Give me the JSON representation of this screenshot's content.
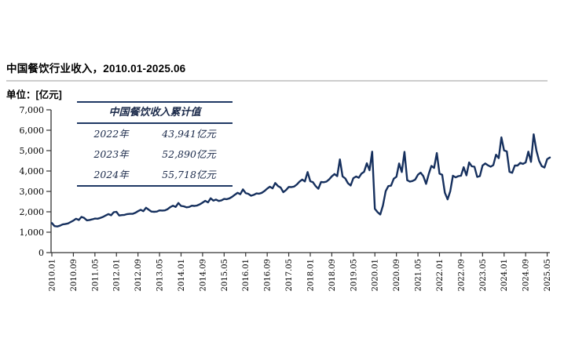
{
  "header": {
    "title": "中国餐饮行业收入，2010.01-2025.06",
    "unit_label": "单位：[亿元]"
  },
  "overlay_table": {
    "title": "中国餐饮收入累计值",
    "rows": [
      {
        "year": "2022年",
        "value": "43,941亿元"
      },
      {
        "year": "2023年",
        "value": "52,890亿元"
      },
      {
        "year": "2024年",
        "value": "55,718亿元"
      }
    ]
  },
  "colors": {
    "line_navy": "#16305e",
    "table_border_navy": "#1f3864",
    "axis_black": "#333333",
    "divider_gray": "#cdcdcd"
  },
  "chart_data": {
    "type": "line",
    "title": "中国餐饮行业收入，2010.01-2025.06",
    "ylabel": "亿元",
    "ylim": [
      0,
      7000
    ],
    "y_tick_step": 1000,
    "y_tick_labels": [
      "0",
      "1,000",
      "2,000",
      "3,000",
      "4,000",
      "5,000",
      "6,000",
      "7,000"
    ],
    "x_start": "2010.01",
    "x_end": "2025.06",
    "x_frequency": "monthly",
    "x_tick_every_months": 8,
    "x_tick_labels": [
      "2010.01",
      "2010.09",
      "2011.05",
      "2012.01",
      "2012.09",
      "2013.05",
      "2014.01",
      "2014.09",
      "2015.05",
      "2016.01",
      "2016.09",
      "2017.05",
      "2018.01",
      "2018.09",
      "2019.05",
      "2020.01",
      "2020.09",
      "2021.05",
      "2022.01",
      "2022.09",
      "2023.05",
      "2024.01",
      "2024.09",
      "2025.05"
    ],
    "grid": false,
    "legend": "none",
    "series": [
      {
        "name": "中国餐饮行业收入(月度, 亿元)",
        "values": [
          1450,
          1300,
          1280,
          1320,
          1380,
          1400,
          1430,
          1500,
          1570,
          1660,
          1600,
          1750,
          1700,
          1580,
          1600,
          1630,
          1670,
          1660,
          1700,
          1750,
          1820,
          1890,
          1830,
          1980,
          2000,
          1820,
          1840,
          1850,
          1890,
          1900,
          1900,
          1950,
          2030,
          2100,
          2030,
          2200,
          2100,
          2010,
          2000,
          2010,
          2070,
          2060,
          2070,
          2130,
          2230,
          2300,
          2240,
          2430,
          2290,
          2270,
          2220,
          2240,
          2300,
          2290,
          2310,
          2370,
          2450,
          2540,
          2460,
          2660,
          2550,
          2600,
          2530,
          2560,
          2630,
          2620,
          2660,
          2740,
          2840,
          2930,
          2860,
          3100,
          2920,
          2880,
          2790,
          2830,
          2900,
          2890,
          2930,
          3020,
          3140,
          3230,
          3150,
          3410,
          3260,
          3190,
          2960,
          3070,
          3220,
          3210,
          3240,
          3340,
          3480,
          3580,
          3490,
          3950,
          3500,
          3450,
          3260,
          3130,
          3460,
          3450,
          3480,
          3590,
          3740,
          3850,
          3750,
          4570,
          3740,
          3640,
          3400,
          3290,
          3650,
          3730,
          3670,
          3870,
          3960,
          4380,
          4040,
          4950,
          2150,
          1980,
          1870,
          2310,
          3010,
          3260,
          3280,
          3620,
          3720,
          4370,
          3950,
          4940,
          3550,
          3480,
          3510,
          3580,
          3820,
          3920,
          3750,
          3370,
          3850,
          4250,
          4150,
          4880,
          3870,
          3820,
          2940,
          2610,
          3010,
          3770,
          3690,
          3750,
          3770,
          4190,
          3790,
          4420,
          4230,
          4210,
          3710,
          3750,
          4270,
          4370,
          4280,
          4210,
          4290,
          4800,
          4630,
          5650,
          5010,
          4960,
          3960,
          3910,
          4270,
          4270,
          4400,
          4350,
          4420,
          4950,
          4450,
          5800,
          5000,
          4500,
          4240,
          4170,
          4580,
          4660
        ]
      }
    ]
  }
}
